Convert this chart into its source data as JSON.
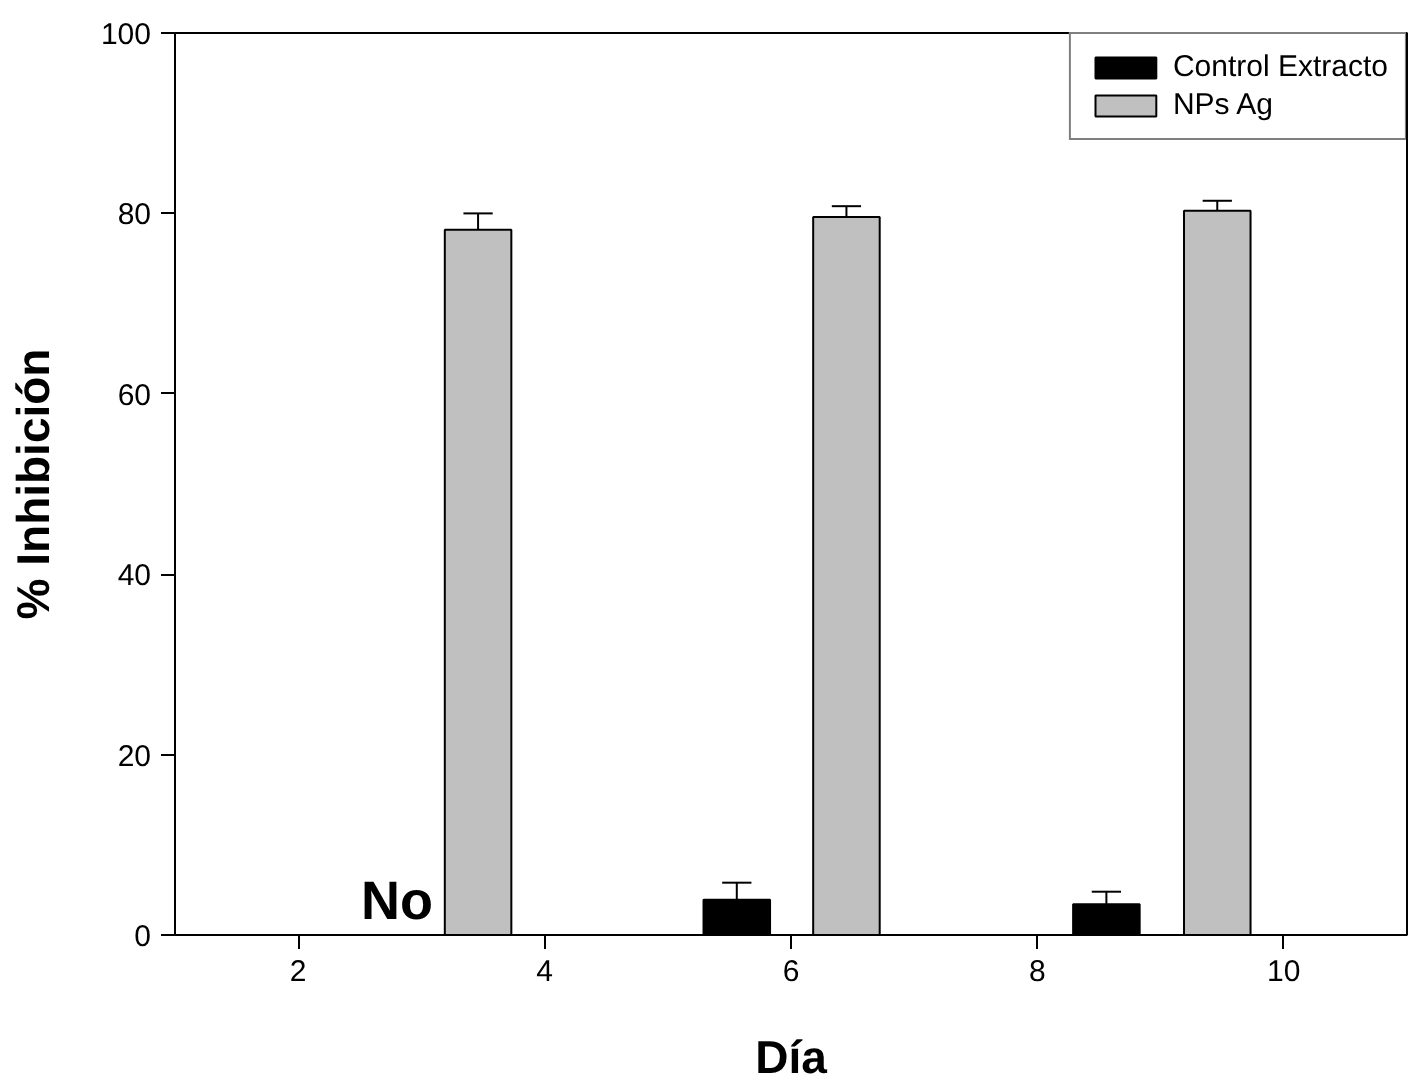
{
  "chart_data": {
    "type": "bar",
    "xlabel": "Día",
    "ylabel": "% Inhibición",
    "xlim": [
      1,
      11
    ],
    "xticks": [
      2,
      4,
      6,
      8,
      10
    ],
    "ylim": [
      0,
      100
    ],
    "yticks": [
      0,
      20,
      40,
      60,
      80,
      100
    ],
    "series": [
      {
        "name": "Control Extracto",
        "color": "#000000",
        "x": [
          5.56,
          8.56
        ],
        "values": [
          3.9,
          3.4
        ],
        "errors": [
          [
            3.9,
            5.8
          ],
          [
            3.4,
            4.8
          ]
        ]
      },
      {
        "name": "NPs Ag",
        "color": "#c0c0c0",
        "x": [
          3.46,
          6.45,
          9.46
        ],
        "values": [
          78.2,
          79.6,
          80.3
        ],
        "errors": [
          [
            78.2,
            80.0
          ],
          [
            79.6,
            80.8
          ],
          [
            80.3,
            81.4
          ]
        ]
      }
    ],
    "annotations": [
      "No"
    ],
    "grid": false,
    "legend": "top right"
  }
}
